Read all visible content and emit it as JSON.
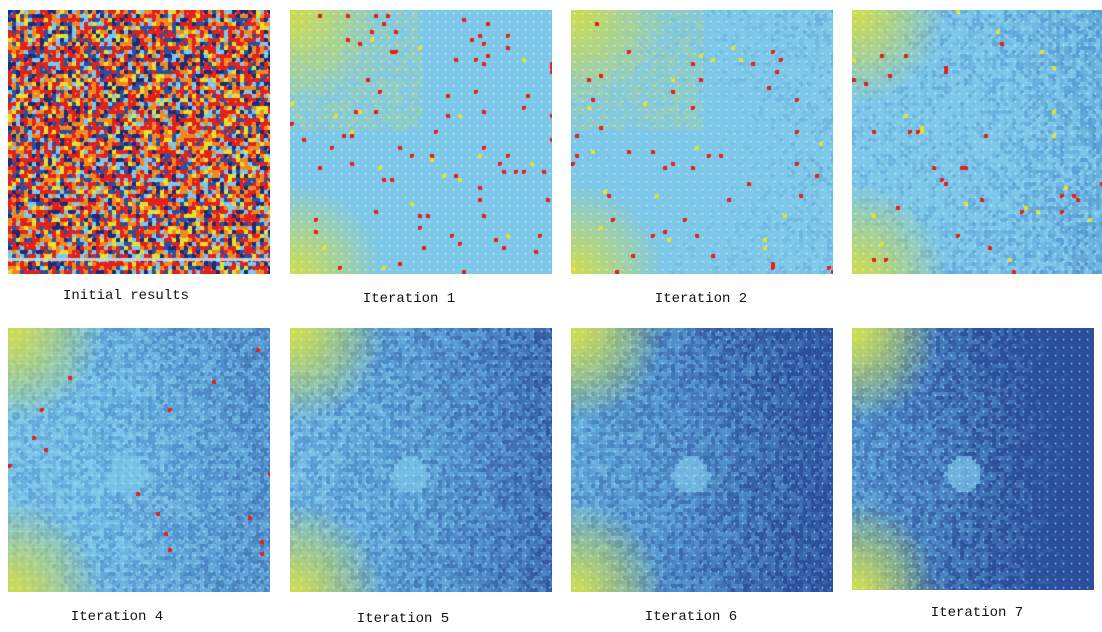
{
  "panels": [
    {
      "id": "initial",
      "caption": "Initial results",
      "shade_level": 0
    },
    {
      "id": "iter1",
      "caption": "Iteration 1",
      "shade_level": 1
    },
    {
      "id": "iter2",
      "caption": "Iteration 2",
      "shade_level": 2
    },
    {
      "id": "iter3",
      "caption": "",
      "shade_level": 3
    },
    {
      "id": "iter4",
      "caption": "Iteration 4",
      "shade_level": 4
    },
    {
      "id": "iter5",
      "caption": "Iteration 5",
      "shade_level": 5
    },
    {
      "id": "iter6",
      "caption": "Iteration 6",
      "shade_level": 6
    },
    {
      "id": "iter7",
      "caption": "Iteration 7",
      "shade_level": 7
    }
  ],
  "colors": {
    "red": "#e0221a",
    "orange": "#f08a1e",
    "yellow": "#e8e02a",
    "light_blue": "#7ec8ea",
    "mid_blue": "#5a9fd6",
    "dark_blue": "#2a4f9c",
    "navy": "#1d2a78",
    "yellow_green": "#c9dc5a"
  }
}
